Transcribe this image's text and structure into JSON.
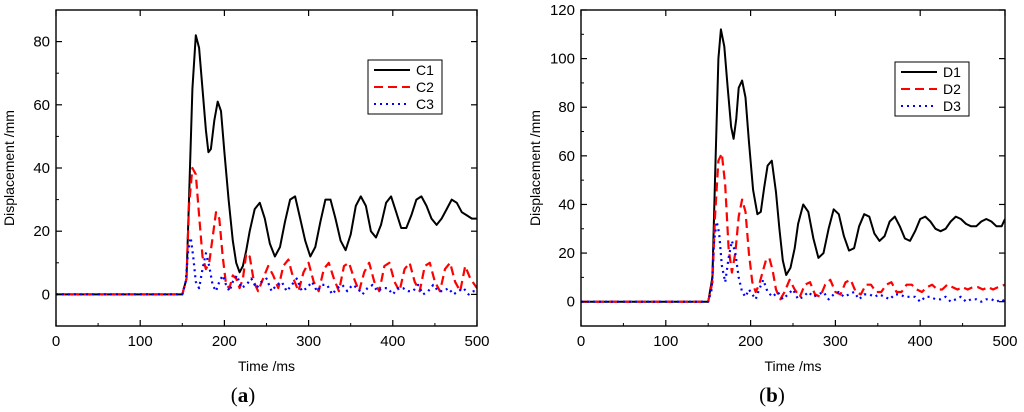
{
  "chart_data": [
    {
      "type": "line",
      "panel_label": {
        "open": "(",
        "letter": "a",
        "close": ")"
      },
      "xlabel": "Time /ms",
      "ylabel": "Displacement /mm",
      "xlim": [
        0,
        500
      ],
      "ylim": [
        -10,
        90
      ],
      "xticks": [
        0,
        100,
        200,
        300,
        400,
        500
      ],
      "yticks": [
        0,
        20,
        40,
        60,
        80
      ],
      "grid": false,
      "legend_position": "top-right",
      "series": [
        {
          "name": "C1",
          "color": "#000000",
          "dash": "solid",
          "x": [
            0,
            150,
            155,
            158,
            162,
            166,
            170,
            174,
            178,
            181,
            184,
            188,
            192,
            196,
            200,
            205,
            210,
            214,
            218,
            222,
            226,
            230,
            236,
            242,
            248,
            254,
            260,
            266,
            272,
            278,
            284,
            290,
            296,
            302,
            308,
            314,
            320,
            326,
            332,
            338,
            344,
            350,
            356,
            362,
            368,
            374,
            380,
            386,
            392,
            398,
            404,
            410,
            416,
            422,
            428,
            434,
            440,
            446,
            452,
            458,
            464,
            470,
            476,
            482,
            488,
            494,
            500
          ],
          "y": [
            0,
            0,
            5,
            30,
            65,
            82,
            78,
            65,
            52,
            45,
            46,
            55,
            61,
            58,
            45,
            30,
            17,
            10,
            7,
            9,
            14,
            20,
            27,
            29,
            24,
            16,
            12,
            15,
            23,
            30,
            31,
            24,
            17,
            12,
            15,
            23,
            30,
            30,
            24,
            17,
            14,
            19,
            28,
            31,
            28,
            20,
            18,
            22,
            29,
            31,
            26,
            21,
            21,
            25,
            30,
            31,
            28,
            24,
            22,
            24,
            27,
            30,
            29,
            26,
            25,
            24,
            24
          ]
        },
        {
          "name": "C2",
          "color": "#ff0000",
          "dash": "dashed",
          "x": [
            0,
            150,
            155,
            158,
            162,
            166,
            170,
            174,
            178,
            182,
            186,
            190,
            194,
            198,
            202,
            206,
            210,
            214,
            218,
            222,
            226,
            230,
            235,
            240,
            246,
            252,
            258,
            264,
            270,
            276,
            282,
            288,
            294,
            300,
            306,
            312,
            318,
            324,
            330,
            336,
            342,
            348,
            354,
            360,
            366,
            372,
            378,
            384,
            390,
            396,
            402,
            408,
            414,
            420,
            426,
            432,
            438,
            444,
            450,
            456,
            462,
            468,
            474,
            480,
            486,
            492,
            500
          ],
          "y": [
            0,
            0,
            5,
            28,
            40,
            38,
            25,
            12,
            8,
            10,
            18,
            26,
            24,
            12,
            3,
            2,
            6,
            5,
            2,
            5,
            13,
            12,
            4,
            1,
            5,
            9,
            6,
            2,
            9,
            11,
            5,
            1,
            7,
            10,
            4,
            1,
            8,
            10,
            5,
            1,
            9,
            10,
            5,
            1,
            7,
            10,
            4,
            1,
            9,
            10,
            4,
            1,
            8,
            10,
            4,
            1,
            9,
            10,
            4,
            1,
            8,
            10,
            4,
            1,
            9,
            5,
            2
          ]
        },
        {
          "name": "C3",
          "color": "#0000ff",
          "dash": "dotted",
          "x": [
            0,
            150,
            154,
            157,
            160,
            163,
            166,
            170,
            174,
            178,
            182,
            186,
            190,
            194,
            198,
            202,
            206,
            210,
            215,
            220,
            226,
            232,
            238,
            244,
            250,
            256,
            262,
            268,
            274,
            280,
            286,
            292,
            298,
            304,
            310,
            316,
            322,
            328,
            334,
            340,
            346,
            352,
            358,
            364,
            370,
            376,
            382,
            388,
            394,
            400,
            406,
            412,
            418,
            424,
            430,
            436,
            442,
            448,
            454,
            460,
            466,
            472,
            478,
            484,
            490,
            496,
            500
          ],
          "y": [
            0,
            0,
            4,
            14,
            18,
            12,
            4,
            2,
            8,
            13,
            9,
            3,
            1,
            4,
            6,
            3,
            1,
            4,
            6,
            2,
            3,
            5,
            2,
            4,
            5,
            1,
            3,
            4,
            1,
            3,
            5,
            1,
            2,
            4,
            1,
            3,
            3,
            0,
            2,
            3,
            1,
            3,
            2,
            0,
            2,
            3,
            1,
            2,
            2,
            0,
            2,
            2,
            1,
            1,
            3,
            0,
            1,
            3,
            1,
            1,
            2,
            0,
            1,
            2,
            0,
            1,
            1
          ]
        }
      ]
    },
    {
      "type": "line",
      "panel_label": {
        "open": "(",
        "letter": "b",
        "close": ")"
      },
      "xlabel": "Time /ms",
      "ylabel": "Displacement /mm",
      "xlim": [
        0,
        500
      ],
      "ylim": [
        -10,
        120
      ],
      "xticks": [
        0,
        100,
        200,
        300,
        400,
        500
      ],
      "yticks": [
        0,
        20,
        40,
        60,
        80,
        100,
        120
      ],
      "grid": false,
      "legend_position": "top-right",
      "series": [
        {
          "name": "D1",
          "color": "#000000",
          "dash": "solid",
          "x": [
            0,
            150,
            155,
            158,
            162,
            165,
            169,
            173,
            177,
            180,
            183,
            186,
            190,
            194,
            198,
            203,
            208,
            212,
            216,
            220,
            225,
            230,
            234,
            238,
            242,
            247,
            252,
            256,
            262,
            268,
            274,
            280,
            286,
            292,
            298,
            304,
            310,
            316,
            322,
            328,
            334,
            340,
            346,
            352,
            358,
            364,
            370,
            376,
            382,
            388,
            394,
            400,
            406,
            412,
            418,
            424,
            430,
            436,
            442,
            448,
            454,
            460,
            466,
            472,
            478,
            484,
            490,
            496,
            500
          ],
          "y": [
            0,
            0,
            10,
            50,
            100,
            112,
            105,
            88,
            72,
            67,
            75,
            88,
            91,
            84,
            66,
            46,
            36,
            37,
            47,
            56,
            58,
            45,
            30,
            17,
            11,
            14,
            22,
            32,
            40,
            37,
            26,
            18,
            20,
            30,
            38,
            36,
            27,
            21,
            22,
            31,
            36,
            35,
            28,
            25,
            27,
            33,
            35,
            31,
            26,
            25,
            29,
            34,
            35,
            33,
            30,
            29,
            30,
            33,
            35,
            34,
            32,
            31,
            31,
            33,
            34,
            33,
            31,
            31,
            34
          ]
        },
        {
          "name": "D2",
          "color": "#ff0000",
          "dash": "dashed",
          "x": [
            0,
            150,
            155,
            158,
            162,
            166,
            170,
            174,
            178,
            182,
            186,
            190,
            194,
            198,
            202,
            206,
            210,
            214,
            218,
            222,
            226,
            230,
            235,
            240,
            246,
            252,
            258,
            264,
            270,
            276,
            282,
            288,
            294,
            300,
            306,
            312,
            318,
            324,
            330,
            336,
            342,
            348,
            354,
            360,
            366,
            372,
            378,
            384,
            390,
            396,
            402,
            408,
            414,
            420,
            426,
            432,
            438,
            444,
            450,
            456,
            462,
            468,
            474,
            480,
            486,
            492,
            500
          ],
          "y": [
            0,
            0,
            8,
            35,
            58,
            61,
            48,
            22,
            12,
            20,
            35,
            42,
            37,
            20,
            8,
            4,
            7,
            12,
            17,
            18,
            13,
            5,
            1,
            4,
            9,
            5,
            2,
            7,
            8,
            3,
            2,
            7,
            9,
            4,
            3,
            8,
            9,
            4,
            3,
            7,
            7,
            4,
            4,
            7,
            8,
            4,
            4,
            7,
            7,
            5,
            4,
            6,
            7,
            5,
            5,
            7,
            6,
            5,
            6,
            5,
            6,
            6,
            5,
            6,
            5,
            6,
            7
          ]
        },
        {
          "name": "D3",
          "color": "#0000ff",
          "dash": "dotted",
          "x": [
            0,
            150,
            154,
            157,
            160,
            163,
            166,
            170,
            174,
            178,
            182,
            186,
            190,
            194,
            198,
            202,
            206,
            210,
            215,
            220,
            226,
            232,
            238,
            244,
            250,
            256,
            262,
            268,
            274,
            280,
            286,
            292,
            298,
            304,
            310,
            316,
            322,
            328,
            334,
            340,
            346,
            352,
            358,
            364,
            370,
            376,
            382,
            388,
            394,
            400,
            406,
            412,
            418,
            424,
            430,
            436,
            442,
            448,
            454,
            460,
            466,
            472,
            478,
            484,
            490,
            496,
            500
          ],
          "y": [
            0,
            0,
            5,
            25,
            33,
            28,
            15,
            8,
            18,
            25,
            20,
            10,
            4,
            2,
            5,
            3,
            1,
            5,
            9,
            4,
            2,
            4,
            1,
            3,
            5,
            1,
            2,
            4,
            2,
            3,
            4,
            1,
            3,
            4,
            2,
            3,
            4,
            1,
            3,
            3,
            2,
            3,
            2,
            1,
            3,
            3,
            2,
            2,
            2,
            0,
            2,
            2,
            1,
            1,
            2,
            0,
            1,
            2,
            0,
            1,
            1,
            0,
            1,
            1,
            0,
            1,
            0
          ]
        }
      ]
    }
  ]
}
